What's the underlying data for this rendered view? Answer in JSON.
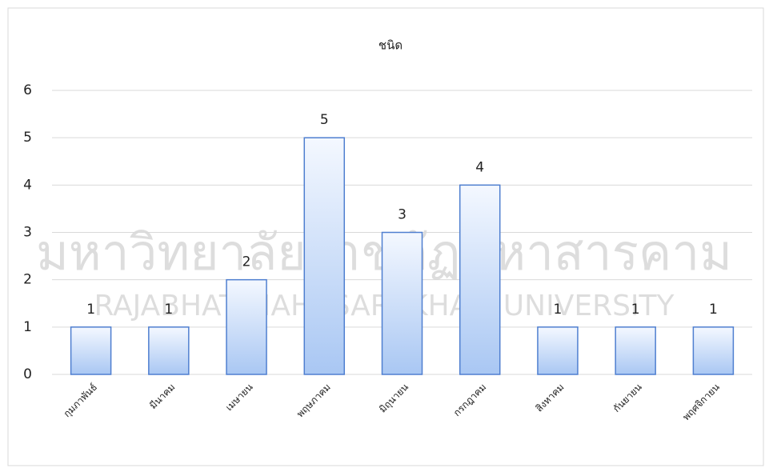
{
  "chart_data": {
    "type": "bar",
    "title": "ชนิด",
    "categories": [
      "กุมภาพันธ์",
      "มีนาคม",
      "เมษายน",
      "พฤษภาคม",
      "มิถุนายน",
      "กรกฎาคม",
      "สิงหาคม",
      "กันยายน",
      "พฤศจิกายน"
    ],
    "values": [
      1,
      1,
      2,
      5,
      3,
      4,
      1,
      1,
      1
    ],
    "color": "#4f7fd0",
    "ylim": [
      0,
      6
    ],
    "yticks": [
      0,
      1,
      2,
      3,
      4,
      5,
      6
    ],
    "grid": true,
    "watermark": [
      "มหาวิทยาลัยราชภัฏมหาสารคาม",
      "RAJABHAT MAHASARAKHAM UNIVERSITY"
    ]
  }
}
